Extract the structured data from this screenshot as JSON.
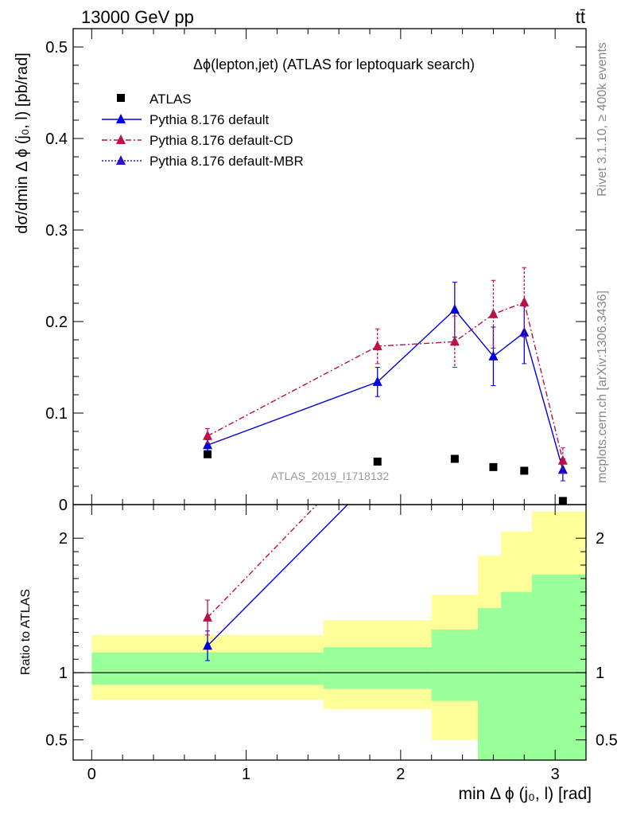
{
  "header": {
    "beam": "13000 GeV pp",
    "process": "tt̄"
  },
  "side_text": {
    "rivet": "Rivet 3.1.10, ≥ 400k events",
    "mcplots": "mcplots.cern.ch [arXiv:1306.3436]"
  },
  "chart_data": [
    {
      "type": "scatter",
      "panel": "main",
      "title": "Δϕ(lepton,jet) (ATLAS for leptoquark search)",
      "analysis_label": "ATLAS_2019_I1718132",
      "ylabel": "dσ/dmin Δ ϕ (j₀, l) [pb/rad]",
      "ylim": [
        0,
        0.52
      ],
      "xlim": [
        -0.12,
        3.2
      ],
      "yticks": [
        0,
        0.1,
        0.2,
        0.3,
        0.4,
        0.5
      ],
      "ytick_labels": [
        "0",
        "0.1",
        "0.2",
        "0.3",
        "0.4",
        "0.5"
      ],
      "legend_placement": "top-left",
      "series": [
        {
          "name": "ATLAS",
          "color": "#000000",
          "style": "data",
          "x": [
            0.75,
            1.85,
            2.35,
            2.6,
            2.8,
            3.05
          ],
          "y": [
            0.055,
            0.047,
            0.05,
            0.041,
            0.037,
            0.004
          ]
        },
        {
          "name": "Pythia 8.176 default",
          "color": "#0000dd",
          "style": "solid",
          "x": [
            0.75,
            1.85,
            2.35,
            2.6,
            2.8,
            3.05
          ],
          "y": [
            0.065,
            0.134,
            0.213,
            0.162,
            0.188,
            0.038
          ],
          "err": [
            0.006,
            0.016,
            0.03,
            0.032,
            0.034,
            0.012
          ]
        },
        {
          "name": "Pythia 8.176 default-CD",
          "color": "#bb1144",
          "style": "dashdot",
          "x": [
            0.75,
            1.85,
            2.35,
            2.6,
            2.8,
            3.05
          ],
          "y": [
            0.075,
            0.173,
            0.178,
            0.208,
            0.221,
            0.048
          ],
          "err": [
            0.008,
            0.019,
            0.028,
            0.037,
            0.038,
            0.014
          ]
        },
        {
          "name": "Pythia 8.176 default-MBR",
          "color": "#3311cc",
          "style": "dotted",
          "x": [],
          "y": []
        }
      ]
    },
    {
      "type": "scatter",
      "panel": "ratio",
      "ylabel": "Ratio to ATLAS",
      "xlabel": "min Δ ϕ (j₀, l) [rad]",
      "ylim": [
        0.35,
        2.25
      ],
      "xlim": [
        -0.12,
        3.2
      ],
      "yticks": [
        0.5,
        1,
        2
      ],
      "ytick_labels": [
        "0.5",
        "1",
        "2"
      ],
      "xticks": [
        0,
        1,
        2,
        3
      ],
      "xtick_labels": [
        "0",
        "1",
        "2",
        "3"
      ],
      "bin_edges": [
        0,
        1.5,
        2.2,
        2.5,
        2.65,
        2.85,
        3.2
      ],
      "band_inner": [
        [
          0.91,
          1.15
        ],
        [
          0.88,
          1.19
        ],
        [
          0.79,
          1.32
        ],
        [
          0.35,
          1.48
        ],
        [
          0.35,
          1.6
        ],
        [
          0.35,
          1.73
        ]
      ],
      "band_outer": [
        [
          0.8,
          1.28
        ],
        [
          0.73,
          1.39
        ],
        [
          0.5,
          1.58
        ],
        [
          0.35,
          1.87
        ],
        [
          0.35,
          2.05
        ],
        [
          0.35,
          2.2
        ]
      ],
      "series": [
        {
          "name": "Pythia 8.176 default",
          "color": "#0000dd",
          "style": "solid",
          "x": [
            0.75,
            1.7
          ],
          "y": [
            1.2,
            2.3
          ],
          "err": [
            0.11,
            0
          ]
        },
        {
          "name": "Pythia 8.176 default-CD",
          "color": "#bb1144",
          "style": "dashdot",
          "x": [
            0.75,
            1.5
          ],
          "y": [
            1.41,
            2.3
          ],
          "err": [
            0.13,
            0
          ]
        }
      ]
    }
  ]
}
